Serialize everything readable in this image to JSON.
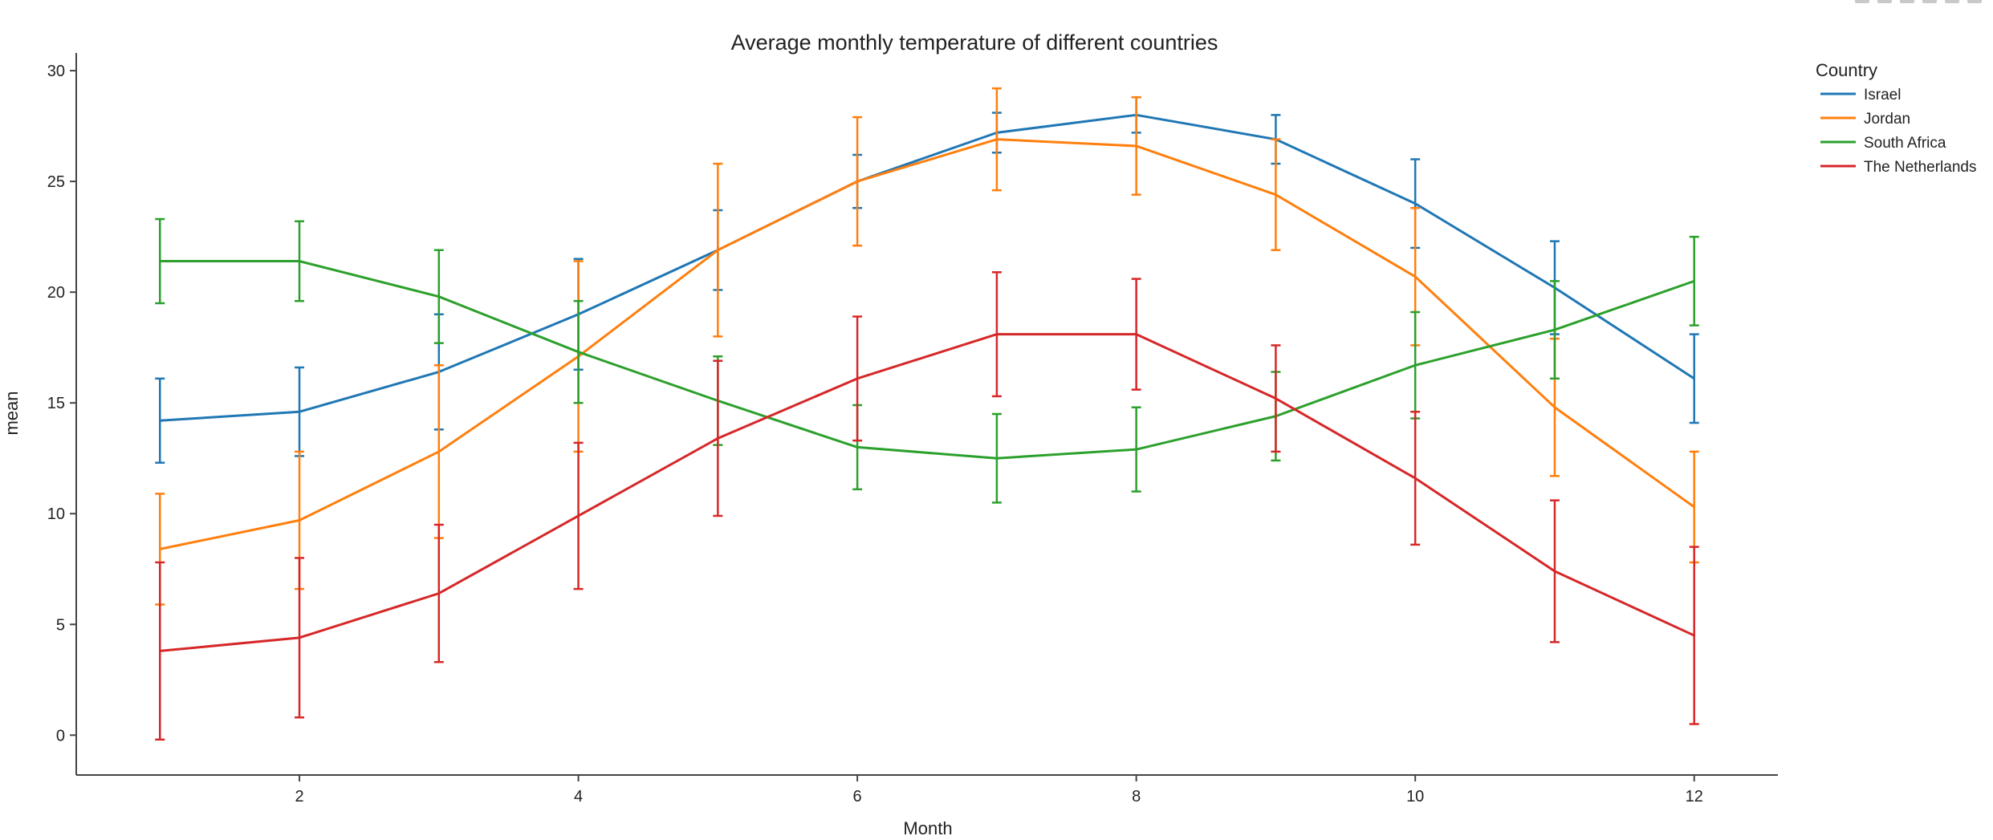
{
  "chart_data": {
    "type": "line",
    "title": "Average monthly temperature of different countries",
    "xlabel": "Month",
    "ylabel": "mean",
    "legend_title": "Country",
    "legend_position": "top-right",
    "xlim": [
      0.4,
      12.6
    ],
    "ylim": [
      -1.8,
      30.8
    ],
    "x_ticks": [
      2,
      4,
      6,
      8,
      10,
      12
    ],
    "y_ticks": [
      0,
      5,
      10,
      15,
      20,
      25,
      30
    ],
    "grid": false,
    "x": [
      1,
      2,
      3,
      4,
      5,
      6,
      7,
      8,
      9,
      10,
      11,
      12
    ],
    "series": [
      {
        "name": "Israel",
        "color": "#1f77b4",
        "values": [
          14.2,
          14.6,
          16.4,
          19.0,
          21.9,
          25.0,
          27.2,
          28.0,
          26.9,
          24.0,
          20.2,
          16.1
        ],
        "error": [
          1.9,
          2.0,
          2.6,
          2.5,
          1.8,
          1.2,
          0.9,
          0.8,
          1.1,
          2.0,
          2.1,
          2.0
        ]
      },
      {
        "name": "Jordan",
        "color": "#ff7f0e",
        "values": [
          8.4,
          9.7,
          12.8,
          17.1,
          21.9,
          25.0,
          26.9,
          26.6,
          24.4,
          20.7,
          14.8,
          10.3
        ],
        "error": [
          2.5,
          3.1,
          3.9,
          4.3,
          3.9,
          2.9,
          2.3,
          2.2,
          2.5,
          3.1,
          3.1,
          2.5
        ]
      },
      {
        "name": "South Africa",
        "color": "#2ca02c",
        "values": [
          21.4,
          21.4,
          19.8,
          17.3,
          15.1,
          13.0,
          12.5,
          12.9,
          14.4,
          16.7,
          18.3,
          20.5
        ],
        "error": [
          1.9,
          1.8,
          2.1,
          2.3,
          2.0,
          1.9,
          2.0,
          1.9,
          2.0,
          2.4,
          2.2,
          2.0
        ]
      },
      {
        "name": "The Netherlands",
        "color": "#d62728",
        "values": [
          3.8,
          4.4,
          6.4,
          9.9,
          13.4,
          16.1,
          18.1,
          18.1,
          15.2,
          11.6,
          7.4,
          4.5
        ],
        "error": [
          4.0,
          3.6,
          3.1,
          3.3,
          3.5,
          2.8,
          2.8,
          2.5,
          2.4,
          3.0,
          3.2,
          4.0
        ]
      }
    ]
  }
}
